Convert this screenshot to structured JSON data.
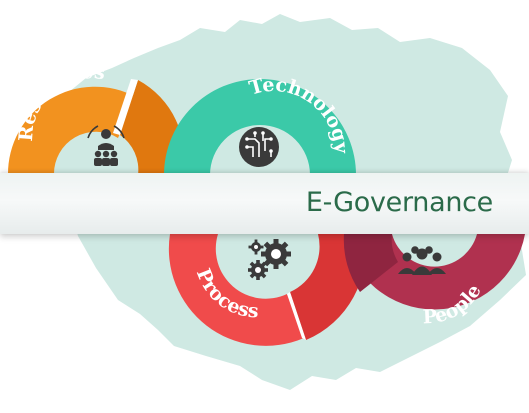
{
  "diagram": {
    "center_label": "E-Governance",
    "segments": [
      {
        "id": "resources",
        "label": "Resources",
        "icon": "manager-team-icon",
        "color": "#f2921f",
        "color_dark": "#e0780f"
      },
      {
        "id": "technology",
        "label": "Technology",
        "icon": "circuit-chip-icon",
        "color": "#3bc9a8",
        "color_dark": "#2aa88a"
      },
      {
        "id": "process",
        "label": "Process",
        "icon": "gears-icon",
        "color": "#f04b4b",
        "color_dark": "#d93535"
      },
      {
        "id": "people",
        "label": "People",
        "icon": "crowd-icon",
        "color": "#b0314f",
        "color_dark": "#8f2540"
      }
    ],
    "map_color": "#cfe9e3",
    "icon_color": "#3a3a3a"
  }
}
